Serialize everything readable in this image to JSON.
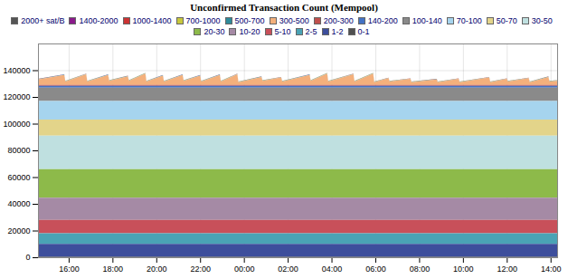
{
  "chart_data": {
    "type": "area",
    "title": "Unconfirmed Transaction Count (Mempool)",
    "stacked": true,
    "grid": true,
    "legend": "top",
    "x": [
      14.6,
      15.8,
      15.85,
      16.8,
      16.85,
      17.8,
      17.85,
      18.7,
      18.75,
      19.5,
      19.55,
      20.3,
      20.35,
      21.2,
      21.25,
      22.0,
      22.05,
      22.9,
      22.95,
      23.7,
      23.75,
      24.8,
      24.85,
      25.7,
      25.75,
      27.0,
      27.05,
      27.8,
      27.85,
      29.0,
      29.05,
      29.9,
      29.95,
      30.6,
      30.65,
      31.6,
      31.65,
      32.8,
      32.85,
      33.8,
      33.85,
      35.2,
      35.25,
      36.0,
      36.05,
      37.0,
      37.05,
      37.9,
      37.95,
      38.3
    ],
    "xlim": [
      14.6,
      38.3
    ],
    "xticks": [
      {
        "value": 16,
        "label": "16:00"
      },
      {
        "value": 18,
        "label": "18:00"
      },
      {
        "value": 20,
        "label": "20:00"
      },
      {
        "value": 22,
        "label": "22:00"
      },
      {
        "value": 24,
        "label": "00:00"
      },
      {
        "value": 26,
        "label": "02:00"
      },
      {
        "value": 28,
        "label": "04:00"
      },
      {
        "value": 30,
        "label": "06:00"
      },
      {
        "value": 32,
        "label": "08:00"
      },
      {
        "value": 34,
        "label": "10:00"
      },
      {
        "value": 36,
        "label": "12:00"
      },
      {
        "value": 38,
        "label": "14:00"
      }
    ],
    "ylim": [
      0,
      160000
    ],
    "yticks": [
      0,
      20000,
      40000,
      60000,
      80000,
      100000,
      120000,
      140000
    ],
    "series": [
      {
        "name": "2000+ sat/B",
        "color": "#555555",
        "values": [
          100,
          100,
          100,
          100,
          100,
          100,
          100,
          100,
          100,
          100,
          100,
          100,
          100,
          100,
          100,
          100,
          100,
          100,
          100,
          100,
          100,
          100,
          100,
          100,
          100,
          100,
          100,
          100,
          100,
          100,
          100,
          100,
          100,
          100,
          100,
          100,
          100,
          100,
          100,
          100,
          100,
          100,
          100,
          100,
          100,
          100,
          100,
          100,
          100,
          100
        ]
      },
      {
        "name": "1400-2000",
        "color": "#8b1a8b",
        "values": [
          30,
          30,
          30,
          30,
          30,
          30,
          30,
          30,
          30,
          30,
          30,
          30,
          30,
          30,
          30,
          30,
          30,
          30,
          30,
          30,
          30,
          30,
          30,
          30,
          30,
          30,
          30,
          30,
          30,
          30,
          30,
          30,
          30,
          30,
          30,
          30,
          30,
          30,
          30,
          30,
          30,
          30,
          30,
          30,
          30,
          30,
          30,
          30,
          30,
          30
        ]
      },
      {
        "name": "1000-1400",
        "color": "#cc3333",
        "values": [
          50,
          50,
          50,
          50,
          50,
          50,
          50,
          50,
          50,
          50,
          50,
          50,
          50,
          50,
          50,
          50,
          50,
          50,
          50,
          50,
          50,
          50,
          50,
          50,
          50,
          50,
          50,
          50,
          50,
          50,
          50,
          50,
          50,
          50,
          50,
          50,
          50,
          50,
          50,
          50,
          50,
          50,
          50,
          50,
          50,
          50,
          50,
          50,
          50,
          50
        ]
      },
      {
        "name": "700-1000",
        "color": "#c8c83c",
        "values": [
          100,
          100,
          100,
          100,
          100,
          100,
          100,
          100,
          100,
          100,
          100,
          100,
          100,
          100,
          100,
          100,
          100,
          100,
          100,
          100,
          100,
          100,
          100,
          100,
          100,
          100,
          100,
          100,
          100,
          100,
          100,
          100,
          100,
          100,
          100,
          100,
          100,
          100,
          100,
          100,
          100,
          100,
          100,
          100,
          100,
          100,
          100,
          100,
          100,
          100
        ]
      },
      {
        "name": "500-700",
        "color": "#2e8b9a",
        "values": [
          200,
          200,
          200,
          200,
          200,
          200,
          200,
          200,
          200,
          200,
          200,
          200,
          200,
          200,
          200,
          200,
          200,
          200,
          200,
          200,
          200,
          200,
          200,
          200,
          200,
          200,
          200,
          200,
          200,
          200,
          200,
          200,
          200,
          200,
          200,
          200,
          200,
          200,
          200,
          200,
          200,
          200,
          200,
          200,
          200,
          200,
          200,
          200,
          200,
          200
        ]
      },
      {
        "name": "300-500",
        "color": "#f4b07c",
        "values": [
          4000,
          7500,
          2500,
          8000,
          2500,
          7500,
          3000,
          6500,
          3000,
          8500,
          2500,
          7000,
          2500,
          7500,
          3000,
          7000,
          2500,
          7500,
          2500,
          8000,
          2000,
          6000,
          3000,
          5500,
          2500,
          7500,
          3000,
          8500,
          2500,
          8000,
          2500,
          8500,
          2000,
          5000,
          2500,
          4500,
          2000,
          4000,
          2000,
          4500,
          2000,
          5500,
          2000,
          4500,
          2500,
          5000,
          2000,
          6000,
          2500,
          3000
        ]
      },
      {
        "name": "200-300",
        "color": "#c0504d",
        "values": [
          700,
          700,
          700,
          700,
          700,
          700,
          700,
          700,
          700,
          700,
          700,
          700,
          700,
          700,
          700,
          700,
          700,
          700,
          700,
          700,
          700,
          700,
          700,
          700,
          700,
          700,
          700,
          700,
          700,
          700,
          700,
          700,
          700,
          700,
          700,
          700,
          700,
          700,
          700,
          700,
          700,
          700,
          700,
          700,
          700,
          700,
          700,
          700,
          700,
          700
        ]
      },
      {
        "name": "140-200",
        "color": "#4472c4",
        "values": [
          1300,
          1300,
          1300,
          1300,
          1300,
          1300,
          1300,
          1300,
          1300,
          1300,
          1300,
          1300,
          1300,
          1300,
          1300,
          1300,
          1300,
          1300,
          1300,
          1300,
          1300,
          1300,
          1300,
          1300,
          1300,
          1300,
          1300,
          1300,
          1300,
          1300,
          1300,
          1300,
          1300,
          1300,
          1300,
          1300,
          1300,
          1300,
          1300,
          1300,
          1300,
          1300,
          1300,
          1300,
          1300,
          1300,
          1300,
          1300,
          1300,
          1300
        ]
      },
      {
        "name": "100-140",
        "color": "#8a8a8a",
        "values": [
          10000,
          10000,
          10000,
          10000,
          10000,
          10000,
          10000,
          10000,
          10000,
          10000,
          10000,
          10000,
          10000,
          10000,
          10000,
          10000,
          10000,
          10000,
          10000,
          10000,
          10000,
          10000,
          10000,
          10000,
          10000,
          10000,
          10000,
          10000,
          10000,
          10000,
          10000,
          10000,
          10000,
          10000,
          10000,
          10000,
          10000,
          10000,
          10000,
          10000,
          10000,
          10000,
          10000,
          10000,
          10000,
          10000,
          10000,
          10000,
          10000,
          10000
        ]
      },
      {
        "name": "70-100",
        "color": "#a6d4ee",
        "values": [
          14000,
          14000,
          14000,
          14000,
          14000,
          14000,
          14000,
          14000,
          14000,
          14000,
          14000,
          14000,
          14000,
          14000,
          14000,
          14000,
          14000,
          14000,
          14000,
          14000,
          14000,
          14000,
          14000,
          14000,
          14000,
          14000,
          14000,
          14000,
          14000,
          14000,
          14000,
          14000,
          14000,
          14000,
          14000,
          14000,
          14000,
          14000,
          14000,
          14000,
          14000,
          14000,
          14000,
          14000,
          14000,
          14000,
          14000,
          14000,
          14000,
          14000
        ]
      },
      {
        "name": "50-70",
        "color": "#e3d48a",
        "values": [
          12000,
          12000,
          12000,
          12000,
          12000,
          12000,
          12000,
          12000,
          12000,
          12000,
          12000,
          12000,
          12000,
          12000,
          12000,
          12000,
          12000,
          12000,
          12000,
          12000,
          12000,
          12000,
          12000,
          12000,
          12000,
          12000,
          12000,
          12000,
          12000,
          12000,
          12000,
          12000,
          12000,
          12000,
          12000,
          12000,
          12000,
          12000,
          12000,
          12000,
          12000,
          12000,
          12000,
          12000,
          12000,
          12000,
          12000,
          12000,
          12000,
          12000
        ]
      },
      {
        "name": "30-50",
        "color": "#bfe0e0",
        "values": [
          25000,
          25000,
          25000,
          25000,
          25000,
          25000,
          25000,
          25000,
          25000,
          25000,
          25000,
          25000,
          25000,
          25000,
          25000,
          25000,
          25000,
          25000,
          25000,
          25000,
          25000,
          25000,
          25000,
          25000,
          25000,
          25000,
          25000,
          25000,
          25000,
          25000,
          25000,
          25000,
          25000,
          25000,
          25000,
          25000,
          25000,
          25000,
          25000,
          25000,
          25000,
          25000,
          25000,
          25000,
          25000,
          25000,
          25000,
          25000,
          25000,
          25000
        ]
      },
      {
        "name": "20-30",
        "color": "#8dba4a",
        "values": [
          21500,
          21500,
          21500,
          21500,
          21500,
          21500,
          21500,
          21500,
          21500,
          21500,
          21500,
          21500,
          21500,
          21500,
          21500,
          21500,
          21500,
          21500,
          21500,
          21500,
          21500,
          21500,
          21500,
          21500,
          21500,
          21500,
          21500,
          21500,
          21500,
          21500,
          21500,
          21500,
          21500,
          21500,
          21500,
          21500,
          21500,
          21500,
          21500,
          21500,
          21500,
          21500,
          21500,
          21500,
          21500,
          21500,
          21500,
          21500,
          21500,
          21500
        ]
      },
      {
        "name": "10-20",
        "color": "#a58aa5",
        "values": [
          16500,
          16500,
          16500,
          16500,
          16500,
          16500,
          16500,
          16500,
          16500,
          16500,
          16500,
          16500,
          16500,
          16500,
          16500,
          16500,
          16500,
          16500,
          16500,
          16500,
          16500,
          16500,
          16500,
          16500,
          16500,
          16500,
          16500,
          16500,
          16500,
          16500,
          16500,
          16500,
          16500,
          16500,
          16500,
          16500,
          16500,
          16500,
          16500,
          16500,
          16500,
          16500,
          16500,
          16500,
          16500,
          16500,
          16500,
          16500,
          16500,
          16500
        ]
      },
      {
        "name": "5-10",
        "color": "#c8505a",
        "values": [
          10000,
          10000,
          10000,
          10000,
          10000,
          10000,
          10000,
          10000,
          10000,
          10000,
          10000,
          10000,
          10000,
          10000,
          10000,
          10000,
          10000,
          10000,
          10000,
          10000,
          10000,
          10000,
          10000,
          10000,
          10000,
          10000,
          10000,
          10000,
          10000,
          10000,
          10000,
          10000,
          10000,
          10000,
          10000,
          10000,
          10000,
          10000,
          10000,
          10000,
          10000,
          10000,
          10000,
          10000,
          10000,
          10000,
          10000,
          10000,
          10000,
          10000
        ]
      },
      {
        "name": "2-5",
        "color": "#4aa3b5",
        "values": [
          8000,
          8000,
          8000,
          8000,
          8000,
          8000,
          8000,
          8000,
          8000,
          8000,
          8000,
          8000,
          8000,
          8000,
          8000,
          8000,
          8000,
          8000,
          8000,
          8000,
          8000,
          8000,
          8000,
          8000,
          8000,
          8000,
          8000,
          8000,
          8000,
          8000,
          8000,
          8000,
          8000,
          8000,
          8000,
          8000,
          8000,
          8000,
          8000,
          8000,
          8000,
          8000,
          8000,
          8000,
          8000,
          8000,
          8000,
          8000,
          8000,
          8000
        ]
      },
      {
        "name": "1-2",
        "color": "#3d4e9c",
        "values": [
          9700,
          9700,
          9700,
          9700,
          9700,
          9700,
          9700,
          9700,
          9700,
          9700,
          9700,
          9700,
          9700,
          9700,
          9700,
          9700,
          9700,
          9700,
          9700,
          9700,
          9700,
          9700,
          9700,
          9700,
          9700,
          9700,
          9700,
          9700,
          9700,
          9700,
          9700,
          9700,
          9700,
          9700,
          9700,
          9700,
          9700,
          9700,
          9700,
          9700,
          9700,
          9700,
          9700,
          9700,
          9700,
          9700,
          9700,
          9700,
          9700,
          9700
        ]
      },
      {
        "name": "0-1",
        "color": "#505050",
        "values": [
          300,
          300,
          300,
          300,
          300,
          300,
          300,
          300,
          300,
          300,
          300,
          300,
          300,
          300,
          300,
          300,
          300,
          300,
          300,
          300,
          300,
          300,
          300,
          300,
          300,
          300,
          300,
          300,
          300,
          300,
          300,
          300,
          300,
          300,
          300,
          300,
          300,
          300,
          300,
          300,
          300,
          300,
          300,
          300,
          300,
          300,
          300,
          300,
          300,
          300
        ]
      }
    ]
  }
}
